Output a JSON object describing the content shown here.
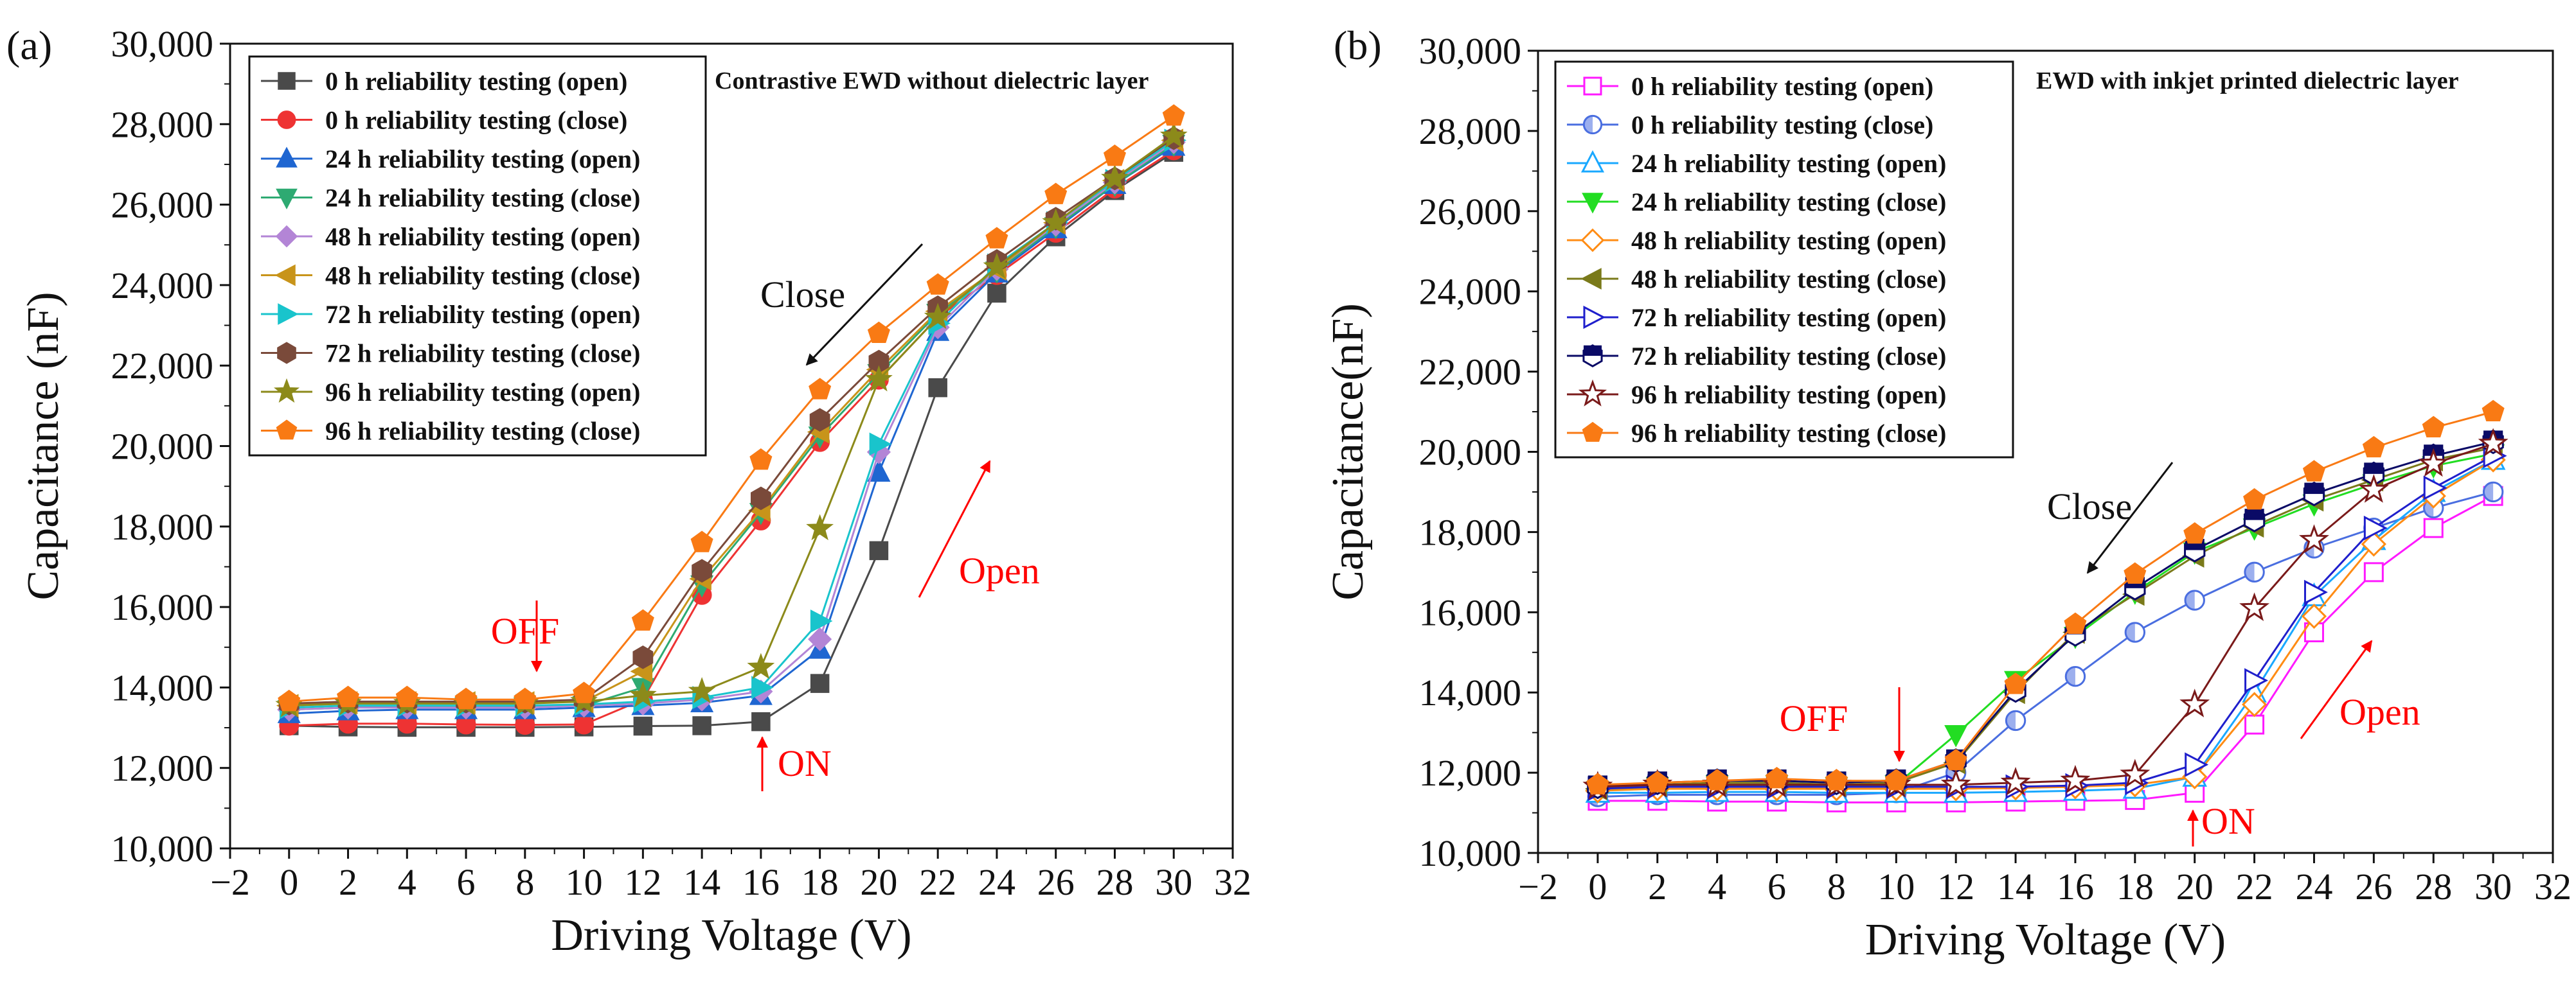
{
  "chart_data": [
    {
      "id": "a",
      "type": "line",
      "panel_label": "(a)",
      "title": "Contrastive EWD without dielectric layer",
      "xlabel": "Driving Voltage (V)",
      "ylabel": "Capacitance (nF)",
      "xlim": [
        -2,
        32
      ],
      "ylim": [
        10000,
        30000
      ],
      "x_ticks": [
        "−2",
        "0",
        "2",
        "4",
        "6",
        "8",
        "10",
        "12",
        "14",
        "16",
        "18",
        "20",
        "22",
        "24",
        "26",
        "28",
        "30",
        "32"
      ],
      "y_ticks": [
        "10,000",
        "12,000",
        "14,000",
        "16,000",
        "18,000",
        "20,000",
        "22,000",
        "24,000",
        "26,000",
        "28,000",
        "30,000"
      ],
      "legend_position": "top-left",
      "x": [
        0,
        2,
        4,
        6,
        8,
        10,
        12,
        14,
        16,
        18,
        20,
        22,
        24,
        26,
        28,
        30
      ],
      "annotations": {
        "close": "Close",
        "open": "Open",
        "off": "OFF",
        "on": "ON"
      },
      "series": [
        {
          "name": "0 h reliability testing (open)",
          "color": "#4a4a4a",
          "marker": "square",
          "values": [
            13050,
            13020,
            13010,
            13010,
            13010,
            13020,
            13040,
            13050,
            13150,
            14100,
            17400,
            21450,
            23800,
            25200,
            26350,
            27300
          ]
        },
        {
          "name": "0 h reliability testing (close)",
          "color": "#ee3333",
          "marker": "circle",
          "values": [
            13050,
            13100,
            13100,
            13080,
            13070,
            13080,
            13700,
            16300,
            18150,
            20100,
            21650,
            23200,
            24250,
            25300,
            26400,
            27350
          ]
        },
        {
          "name": "24 h reliability testing (open)",
          "color": "#1f66d1",
          "marker": "triangle-up",
          "values": [
            13350,
            13420,
            13450,
            13450,
            13450,
            13500,
            13550,
            13620,
            13800,
            14950,
            19350,
            22850,
            24300,
            25400,
            26500,
            27450
          ]
        },
        {
          "name": "24 h reliability testing (close)",
          "color": "#2eaa72",
          "marker": "triangle-down",
          "values": [
            13450,
            13500,
            13520,
            13520,
            13520,
            13550,
            14000,
            16550,
            18350,
            20250,
            21800,
            23300,
            24350,
            25450,
            26500,
            27500
          ]
        },
        {
          "name": "48 h reliability testing (open)",
          "color": "#b385d6",
          "marker": "diamond",
          "values": [
            13450,
            13500,
            13500,
            13500,
            13500,
            13550,
            13600,
            13700,
            13900,
            15200,
            19850,
            22950,
            24400,
            25500,
            26550,
            27550
          ]
        },
        {
          "name": "48 h reliability testing (close)",
          "color": "#c8941a",
          "marker": "triangle-left",
          "values": [
            13550,
            13620,
            13620,
            13620,
            13620,
            13650,
            14400,
            16700,
            18400,
            20350,
            21900,
            23350,
            24400,
            25550,
            26600,
            27600
          ]
        },
        {
          "name": "72 h reliability testing (open)",
          "color": "#19c4cc",
          "marker": "triangle-right",
          "values": [
            13500,
            13550,
            13550,
            13550,
            13550,
            13580,
            13650,
            13750,
            14000,
            15650,
            20050,
            23050,
            24500,
            25550,
            26600,
            27600
          ]
        },
        {
          "name": "72 h reliability testing (close)",
          "color": "#7a4a3a",
          "marker": "hexagon",
          "values": [
            13600,
            13650,
            13650,
            13650,
            13650,
            13700,
            14750,
            16900,
            18700,
            20650,
            22100,
            23450,
            24600,
            25650,
            26650,
            27650
          ]
        },
        {
          "name": "96 h reliability testing (open)",
          "color": "#8c8a1a",
          "marker": "star",
          "values": [
            13550,
            13600,
            13600,
            13600,
            13600,
            13650,
            13800,
            13900,
            14500,
            17950,
            21650,
            23200,
            24450,
            25550,
            26650,
            27700
          ]
        },
        {
          "name": "96 h reliability testing (close)",
          "color": "#f97a14",
          "marker": "pentagon",
          "values": [
            13650,
            13750,
            13750,
            13700,
            13700,
            13850,
            15650,
            17600,
            19650,
            21400,
            22800,
            24000,
            25150,
            26250,
            27200,
            28200
          ]
        }
      ]
    },
    {
      "id": "b",
      "type": "line",
      "panel_label": "(b)",
      "title": "EWD with inkjet printed dielectric layer",
      "xlabel": "Driving Voltage (V)",
      "ylabel": "Capacitance(nF)",
      "xlim": [
        -2,
        32
      ],
      "ylim": [
        10000,
        30000
      ],
      "x_ticks": [
        "−2",
        "0",
        "2",
        "4",
        "6",
        "8",
        "10",
        "12",
        "14",
        "16",
        "18",
        "20",
        "22",
        "24",
        "26",
        "28",
        "30",
        "32"
      ],
      "y_ticks": [
        "10,000",
        "12,000",
        "14,000",
        "16,000",
        "18,000",
        "20,000",
        "22,000",
        "24,000",
        "26,000",
        "28,000",
        "30,000"
      ],
      "legend_position": "top-left",
      "x": [
        0,
        2,
        4,
        6,
        8,
        10,
        12,
        14,
        16,
        18,
        20,
        22,
        24,
        26,
        28,
        30
      ],
      "annotations": {
        "close": "Close",
        "open": "Open",
        "off": "OFF",
        "on": "ON"
      },
      "series": [
        {
          "name": "0 h reliability testing (open)",
          "color": "#ff19ff",
          "marker": "square-open",
          "values": [
            11300,
            11300,
            11280,
            11280,
            11260,
            11260,
            11260,
            11280,
            11300,
            11320,
            11500,
            13200,
            15500,
            17000,
            18100,
            18900
          ]
        },
        {
          "name": "0 h reliability testing (close)",
          "color": "#4a6ee0",
          "marker": "circle-open",
          "values": [
            11400,
            11450,
            11450,
            11450,
            11450,
            11500,
            12000,
            13300,
            14400,
            15500,
            16300,
            17000,
            17600,
            18100,
            18600,
            19000
          ]
        },
        {
          "name": "24 h reliability testing (open)",
          "color": "#19a8ff",
          "marker": "triangle-up-open",
          "values": [
            11500,
            11500,
            11520,
            11520,
            11500,
            11500,
            11500,
            11520,
            11550,
            11600,
            11900,
            14000,
            16400,
            17800,
            19000,
            19800
          ]
        },
        {
          "name": "24 h reliability testing (close)",
          "color": "#22dd22",
          "marker": "triangle-down",
          "values": [
            11550,
            11650,
            11700,
            11700,
            11650,
            11700,
            12950,
            14300,
            15400,
            16500,
            17500,
            18100,
            18700,
            19200,
            19650,
            19950
          ]
        },
        {
          "name": "48 h reliability testing (open)",
          "color": "#ff8c14",
          "marker": "diamond-open",
          "values": [
            11550,
            11600,
            11600,
            11600,
            11600,
            11600,
            11600,
            11620,
            11650,
            11700,
            11900,
            13700,
            15900,
            17700,
            18900,
            19800
          ]
        },
        {
          "name": "48 h reliability testing (close)",
          "color": "#7a7a1a",
          "marker": "triangle-left",
          "values": [
            11600,
            11700,
            11750,
            11750,
            11700,
            11750,
            12250,
            14000,
            15500,
            16450,
            17400,
            18150,
            18800,
            19300,
            19800,
            20100
          ]
        },
        {
          "name": "72 h reliability testing (open)",
          "color": "#1f1fcc",
          "marker": "triangle-right-open",
          "values": [
            11600,
            11650,
            11650,
            11650,
            11650,
            11650,
            11650,
            11650,
            11680,
            11750,
            12200,
            14300,
            16500,
            18100,
            19100,
            19900
          ]
        },
        {
          "name": "72 h reliability testing (close)",
          "color": "#0a0a66",
          "marker": "hexagon-half",
          "values": [
            11650,
            11750,
            11800,
            11800,
            11750,
            11800,
            12300,
            14050,
            15450,
            16600,
            17550,
            18300,
            18950,
            19450,
            19900,
            20250
          ]
        },
        {
          "name": "96 h reliability testing (open)",
          "color": "#7a1a1a",
          "marker": "star-open",
          "values": [
            11650,
            11700,
            11700,
            11700,
            11700,
            11700,
            11700,
            11750,
            11800,
            11950,
            13700,
            16100,
            17800,
            19050,
            19700,
            20200
          ]
        },
        {
          "name": "96 h reliability testing (close)",
          "color": "#f97a14",
          "marker": "pentagon",
          "values": [
            11700,
            11750,
            11800,
            11850,
            11800,
            11800,
            12300,
            14200,
            15700,
            16950,
            17950,
            18800,
            19500,
            20100,
            20600,
            21000
          ]
        }
      ]
    }
  ]
}
